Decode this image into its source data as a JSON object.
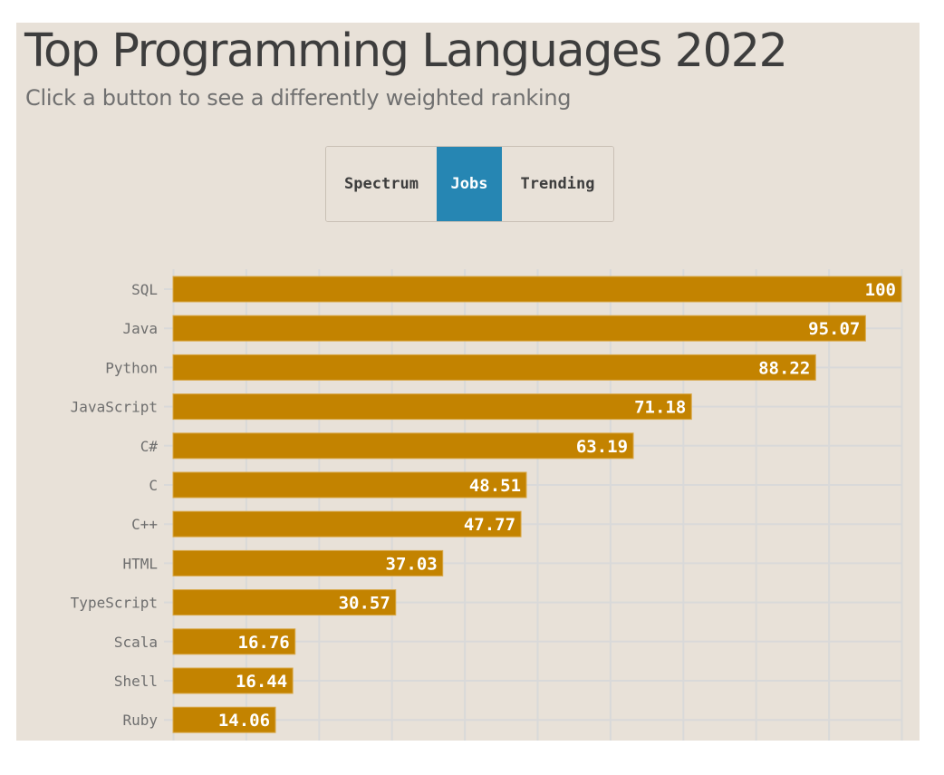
{
  "header": {
    "title": "Top Programming Languages 2022",
    "subtitle": "Click a button to see a differently weighted ranking"
  },
  "ranking_buttons": [
    {
      "label": "Spectrum",
      "active": false
    },
    {
      "label": "Jobs",
      "active": true
    },
    {
      "label": "Trending",
      "active": false
    }
  ],
  "colors": {
    "background": "#e8e1d8",
    "bar": "#c38300",
    "active_button": "#2686b3",
    "gridline": "#d9d9d9",
    "title": "#3d3d3d"
  },
  "chart_data": {
    "type": "bar",
    "orientation": "horizontal",
    "title": "Top Programming Languages 2022",
    "subtitle": "Click a button to see a differently weighted ranking",
    "ranking": "Jobs",
    "categories": [
      "SQL",
      "Java",
      "Python",
      "JavaScript",
      "C#",
      "C",
      "C++",
      "HTML",
      "TypeScript",
      "Scala",
      "Shell",
      "Ruby"
    ],
    "values": [
      100,
      95.07,
      88.22,
      71.18,
      63.19,
      48.51,
      47.77,
      37.03,
      30.57,
      16.76,
      16.44,
      14.06
    ],
    "value_labels": [
      "100",
      "95.07",
      "88.22",
      "71.18",
      "63.19",
      "48.51",
      "47.77",
      "37.03",
      "30.57",
      "16.76",
      "16.44",
      "14.06"
    ],
    "xlim": [
      0,
      100
    ],
    "x_grid_step": 10,
    "grid": true,
    "xlabel": "",
    "ylabel": ""
  }
}
